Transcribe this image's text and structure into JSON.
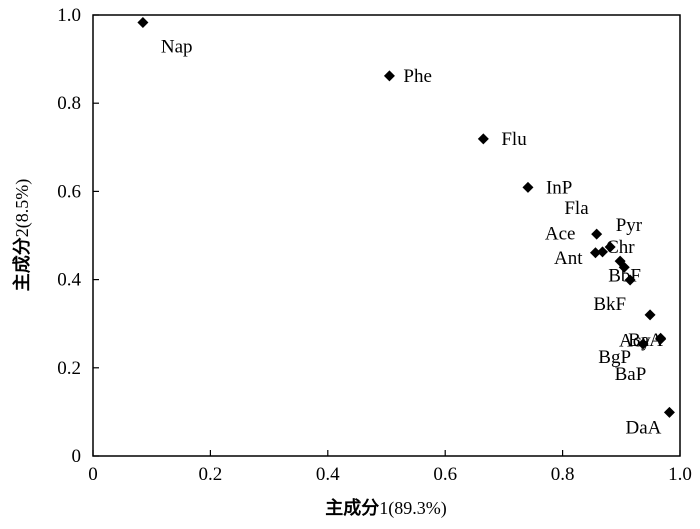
{
  "chart_data": {
    "type": "scatter",
    "xlabel_main": "主成分",
    "xlabel_suffix": "1(89.3%)",
    "ylabel_main": "主成分",
    "ylabel_suffix": "2(8.5%)",
    "xlim": [
      0,
      1.0
    ],
    "ylim": [
      0,
      1.0
    ],
    "x_ticks": [
      0,
      0.2,
      0.4,
      0.6,
      0.8,
      1.0
    ],
    "x_tick_labels": [
      "0",
      "0.2",
      "0.4",
      "0.6",
      "0.8",
      "1.0"
    ],
    "y_ticks": [
      0,
      0.2,
      0.4,
      0.6,
      0.8,
      1.0
    ],
    "y_tick_labels": [
      "0",
      "0.2",
      "0.4",
      "0.6",
      "0.8",
      "1.0"
    ],
    "grid": false,
    "marker": "diamond",
    "marker_color": "#000000",
    "points": [
      {
        "label": "Nap",
        "x": 0.085,
        "y": 0.983
      },
      {
        "label": "Phe",
        "x": 0.505,
        "y": 0.862
      },
      {
        "label": "Flu",
        "x": 0.665,
        "y": 0.719
      },
      {
        "label": "InP",
        "x": 0.741,
        "y": 0.609
      },
      {
        "label": "Fla",
        "x": 0.858,
        "y": 0.503
      },
      {
        "label": "Pyr",
        "x": 0.881,
        "y": 0.474
      },
      {
        "label": "Ace",
        "x": 0.856,
        "y": 0.461
      },
      {
        "label": "Ant",
        "x": 0.868,
        "y": 0.463
      },
      {
        "label": "Chr",
        "x": 0.898,
        "y": 0.442
      },
      {
        "label": "BbF",
        "x": 0.905,
        "y": 0.428
      },
      {
        "label": "BkF",
        "x": 0.915,
        "y": 0.399
      },
      {
        "label": "BaA",
        "x": 0.949,
        "y": 0.32
      },
      {
        "label": "Acy",
        "x": 0.967,
        "y": 0.267
      },
      {
        "label": "BgP",
        "x": 0.937,
        "y": 0.254
      },
      {
        "label": "BaP",
        "x": 0.967,
        "y": 0.265
      },
      {
        "label": "DaA",
        "x": 0.982,
        "y": 0.099
      }
    ]
  }
}
